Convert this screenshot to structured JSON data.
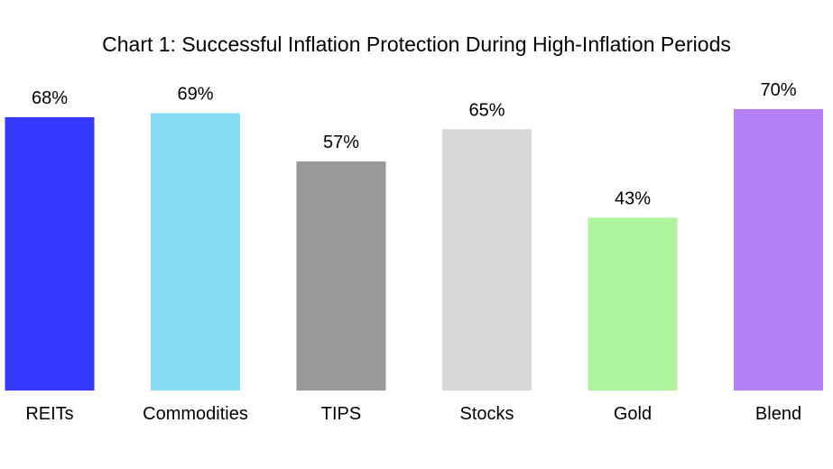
{
  "chart_data": {
    "type": "bar",
    "title": "Chart 1: Successful Inflation Protection During High-Inflation Periods",
    "xlabel": "",
    "ylabel": "",
    "categories": [
      "REITs",
      "Commodities",
      "TIPS",
      "Stocks",
      "Gold",
      "Blend"
    ],
    "values": [
      68,
      69,
      57,
      65,
      43,
      70
    ],
    "value_labels": [
      "68%",
      "69%",
      "57%",
      "65%",
      "43%",
      "70%"
    ],
    "colors": [
      "#3639ff",
      "#87dcf5",
      "#999999",
      "#d8d8d8",
      "#aef39e",
      "#b580f7"
    ],
    "ylim": [
      0,
      70
    ],
    "grid": false,
    "legend": "none"
  }
}
